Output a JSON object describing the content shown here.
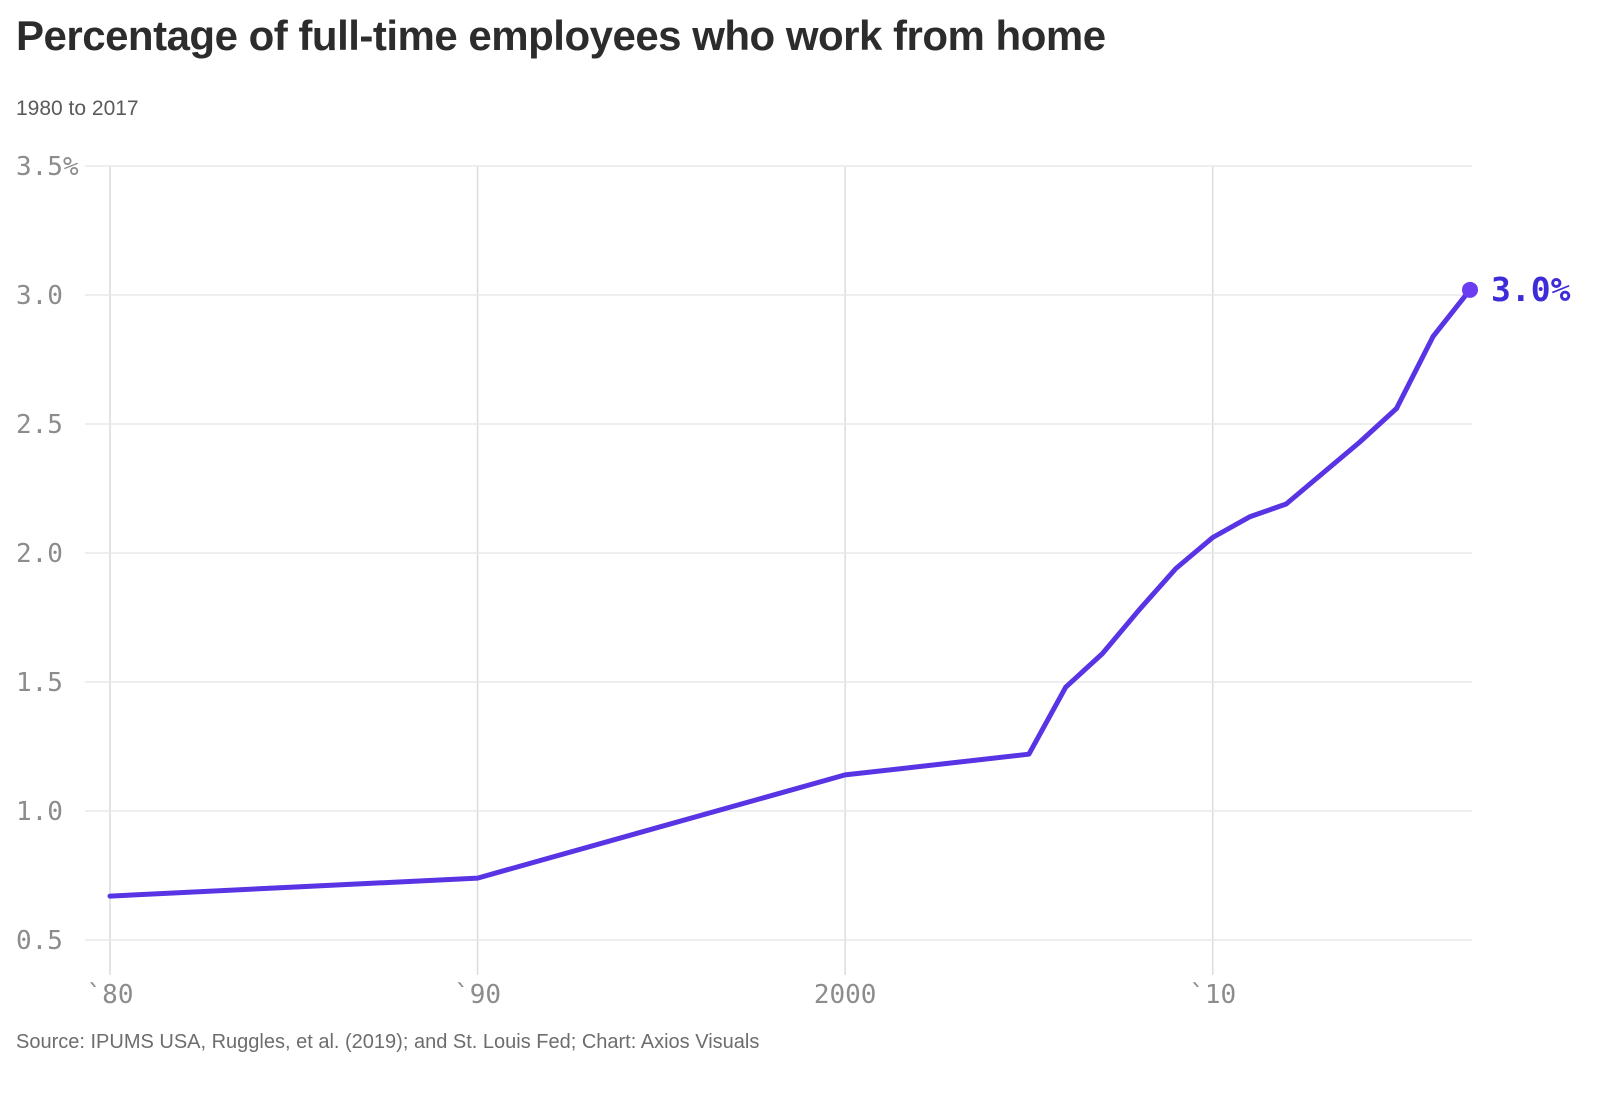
{
  "header": {
    "title": "Percentage of full-time employees who work from home",
    "subtitle": "1980 to 2017"
  },
  "footer": {
    "source": "Source: IPUMS USA, Ruggles, et al. (2019); and St. Louis Fed; Chart: Axios Visuals"
  },
  "colors": {
    "line": "#5834e4",
    "dot": "#6a3df2",
    "end_label": "#3e2cd8",
    "grid_horizontal": "#e8e8e8",
    "grid_vertical": "#dcdcdc",
    "tick_text": "#8c8c8c",
    "background": "#ffffff"
  },
  "chart_data": {
    "type": "line",
    "title": "Percentage of full-time employees who work from home",
    "subtitle": "1980 to 2017",
    "xlabel": "",
    "ylabel": "",
    "grid": true,
    "legend": false,
    "xlim": [
      1980,
      2017
    ],
    "ylim": [
      0.5,
      3.5
    ],
    "x": [
      1980,
      1990,
      2000,
      2005,
      2006,
      2007,
      2008,
      2009,
      2010,
      2011,
      2012,
      2013,
      2014,
      2015,
      2016,
      2017
    ],
    "y": [
      0.67,
      0.74,
      1.14,
      1.22,
      1.48,
      1.61,
      1.78,
      1.94,
      2.06,
      2.14,
      2.19,
      2.31,
      2.43,
      2.56,
      2.84,
      3.02
    ],
    "series_name": "Percentage of full-time employees who work from home",
    "end_label": "3.0%",
    "y_ticks": [
      {
        "value": 3.5,
        "label": "3.5%"
      },
      {
        "value": 3.0,
        "label": "3.0"
      },
      {
        "value": 2.5,
        "label": "2.5"
      },
      {
        "value": 2.0,
        "label": "2.0"
      },
      {
        "value": 1.5,
        "label": "1.5"
      },
      {
        "value": 1.0,
        "label": "1.0"
      },
      {
        "value": 0.5,
        "label": "0.5"
      }
    ],
    "x_ticks": [
      {
        "value": 1980,
        "label": "`80"
      },
      {
        "value": 1990,
        "label": "`90"
      },
      {
        "value": 2000,
        "label": "2000"
      },
      {
        "value": 2010,
        "label": "`10"
      }
    ]
  }
}
